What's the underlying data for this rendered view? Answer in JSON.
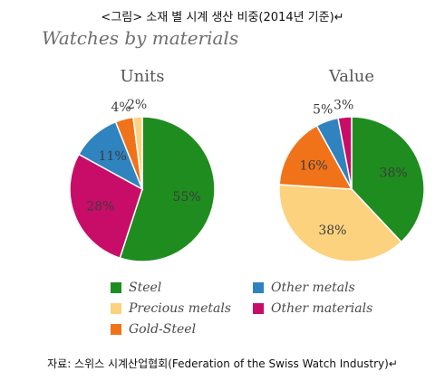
{
  "caption": "<그림> 소재 별 시계 생산 비중(2014년 기준)↵",
  "source": "자료: 스위스 시계산업협회(Federation of the Swiss Watch Industry)↵",
  "chart_data": {
    "type": "pie",
    "title": "Watches by materials",
    "legend": [
      {
        "label": "Steel",
        "color": "#1f8c1f"
      },
      {
        "label": "Precious metals",
        "color": "#fcd27e"
      },
      {
        "label": "Gold-Steel",
        "color": "#f0731a"
      },
      {
        "label": "Other metals",
        "color": "#2f83bf"
      },
      {
        "label": "Other materials",
        "color": "#c80d68"
      }
    ],
    "legend_position": "bottom",
    "pies": [
      {
        "title": "Units",
        "slices": [
          {
            "label": "Steel",
            "value": 55,
            "display": "55%",
            "color": "#1f8c1f"
          },
          {
            "label": "Other materials",
            "value": 28,
            "display": "28%",
            "color": "#c80d68"
          },
          {
            "label": "Other metals",
            "value": 11,
            "display": "11%",
            "color": "#2f83bf"
          },
          {
            "label": "Gold-Steel",
            "value": 4,
            "display": "4%",
            "color": "#f0731a"
          },
          {
            "label": "Precious metals",
            "value": 2,
            "display": "2%",
            "color": "#fcd27e"
          }
        ]
      },
      {
        "title": "Value",
        "slices": [
          {
            "label": "Steel",
            "value": 38,
            "display": "38%",
            "color": "#1f8c1f"
          },
          {
            "label": "Precious metals",
            "value": 38,
            "display": "38%",
            "color": "#fcd27e"
          },
          {
            "label": "Gold-Steel",
            "value": 16,
            "display": "16%",
            "color": "#f0731a"
          },
          {
            "label": "Other metals",
            "value": 5,
            "display": "5%",
            "color": "#2f83bf"
          },
          {
            "label": "Other materials",
            "value": 3,
            "display": "3%",
            "color": "#c80d68"
          }
        ]
      }
    ]
  }
}
